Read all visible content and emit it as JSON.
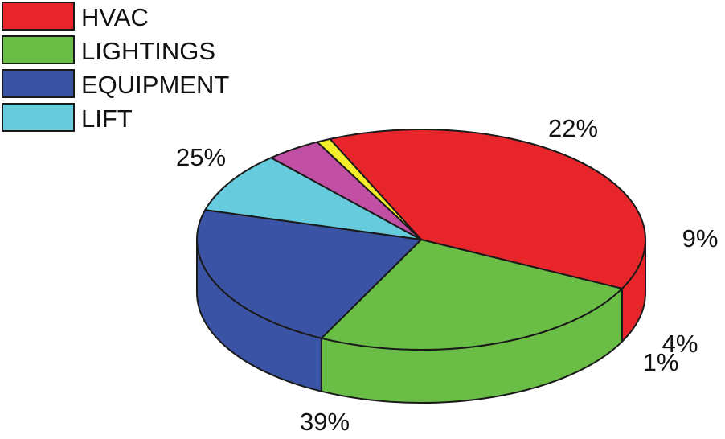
{
  "chart_data": {
    "type": "pie",
    "title": "",
    "legend": [
      {
        "label": "HVAC",
        "color": "#e8252b"
      },
      {
        "label": "LIGHTINGS",
        "color": "#6abd45"
      },
      {
        "label": "EQUIPMENT",
        "color": "#3a53a4"
      },
      {
        "label": "LIFT",
        "color": "#66cbdc"
      }
    ],
    "legend_position": "top-left",
    "slices": [
      {
        "label": "HVAC",
        "value": 39,
        "value_label": "39%",
        "color": "#e8252b"
      },
      {
        "label": "LIGHTINGS",
        "value": 25,
        "value_label": "25%",
        "color": "#6abd45"
      },
      {
        "label": "EQUIPMENT",
        "value": 22,
        "value_label": "22%",
        "color": "#3a53a4"
      },
      {
        "label": "LIFT",
        "value": 9,
        "value_label": "9%",
        "color": "#66cbdc"
      },
      {
        "label": "",
        "value": 4,
        "value_label": "4%",
        "color": "#c14fa4"
      },
      {
        "label": "",
        "value": 1,
        "value_label": "1%",
        "color": "#f5ee2b"
      }
    ],
    "three_d": true
  }
}
